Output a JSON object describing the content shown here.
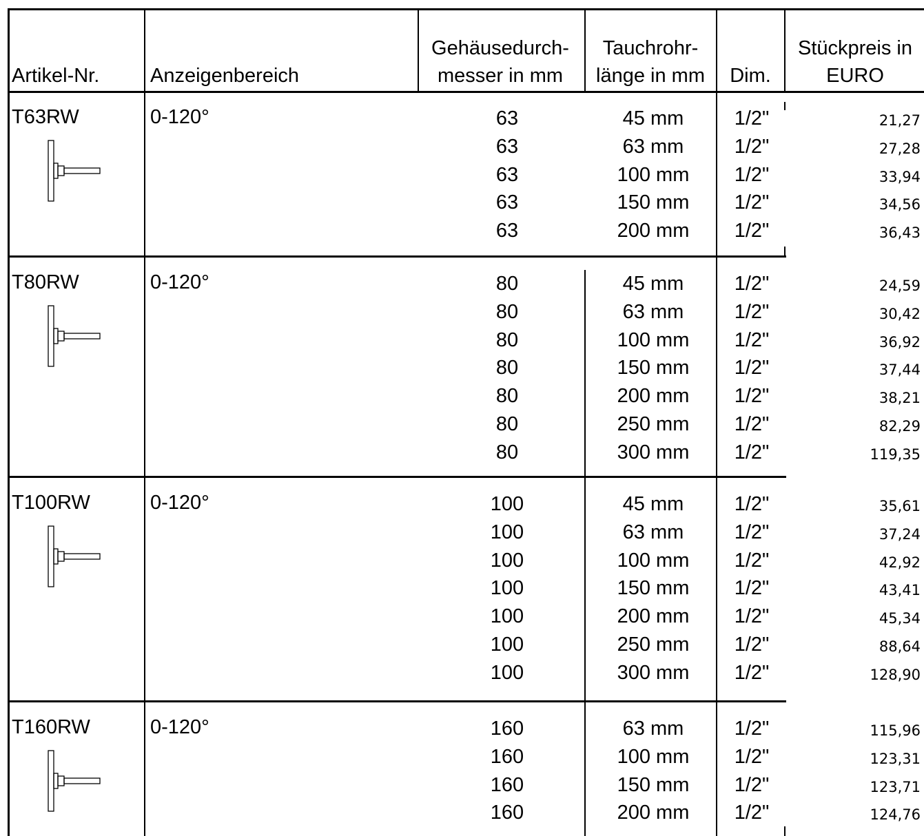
{
  "header": {
    "artikel": "Artikel-Nr.",
    "bereich": "Anzeigenbereich",
    "gehaeuse_1": "Gehäusedurch-",
    "gehaeuse_2": "messer in mm",
    "tauch_1": "Tauchrohr-",
    "tauch_2": "länge in mm",
    "dim": "Dim.",
    "preis_1": "Stückpreis in",
    "preis_2": "EURO"
  },
  "groups": [
    {
      "article": "T63RW",
      "range": "0-120°",
      "icon": "thermometer-icon",
      "rows": [
        {
          "diameter": "63",
          "length": "45 mm",
          "dim": "1/2\"",
          "price": "21,27"
        },
        {
          "diameter": "63",
          "length": "63 mm",
          "dim": "1/2\"",
          "price": "27,28"
        },
        {
          "diameter": "63",
          "length": "100 mm",
          "dim": "1/2\"",
          "price": "33,94"
        },
        {
          "diameter": "63",
          "length": "150 mm",
          "dim": "1/2\"",
          "price": "34,56"
        },
        {
          "diameter": "63",
          "length": "200 mm",
          "dim": "1/2\"",
          "price": "36,43"
        }
      ]
    },
    {
      "article": "T80RW",
      "range": "0-120°",
      "icon": "thermometer-icon",
      "rows": [
        {
          "diameter": "80",
          "length": "45 mm",
          "dim": "1/2\"",
          "price": "24,59"
        },
        {
          "diameter": "80",
          "length": "63 mm",
          "dim": "1/2\"",
          "price": "30,42"
        },
        {
          "diameter": "80",
          "length": "100 mm",
          "dim": "1/2\"",
          "price": "36,92"
        },
        {
          "diameter": "80",
          "length": "150 mm",
          "dim": "1/2\"",
          "price": "37,44"
        },
        {
          "diameter": "80",
          "length": "200 mm",
          "dim": "1/2\"",
          "price": "38,21"
        },
        {
          "diameter": "80",
          "length": "250 mm",
          "dim": "1/2\"",
          "price": "82,29"
        },
        {
          "diameter": "80",
          "length": "300 mm",
          "dim": "1/2\"",
          "price": "119,35"
        }
      ]
    },
    {
      "article": "T100RW",
      "range": "0-120°",
      "icon": "thermometer-icon",
      "rows": [
        {
          "diameter": "100",
          "length": "45 mm",
          "dim": "1/2\"",
          "price": "35,61"
        },
        {
          "diameter": "100",
          "length": "63 mm",
          "dim": "1/2\"",
          "price": "37,24"
        },
        {
          "diameter": "100",
          "length": "100 mm",
          "dim": "1/2\"",
          "price": "42,92"
        },
        {
          "diameter": "100",
          "length": "150 mm",
          "dim": "1/2\"",
          "price": "43,41"
        },
        {
          "diameter": "100",
          "length": "200 mm",
          "dim": "1/2\"",
          "price": "45,34"
        },
        {
          "diameter": "100",
          "length": "250 mm",
          "dim": "1/2\"",
          "price": "88,64"
        },
        {
          "diameter": "100",
          "length": "300 mm",
          "dim": "1/2\"",
          "price": "128,90"
        }
      ]
    },
    {
      "article": "T160RW",
      "range": "0-120°",
      "icon": "thermometer-icon",
      "rows": [
        {
          "diameter": "160",
          "length": "63 mm",
          "dim": "1/2\"",
          "price": "115,96"
        },
        {
          "diameter": "160",
          "length": "100 mm",
          "dim": "1/2\"",
          "price": "123,31"
        },
        {
          "diameter": "160",
          "length": "150 mm",
          "dim": "1/2\"",
          "price": "123,71"
        },
        {
          "diameter": "160",
          "length": "200 mm",
          "dim": "1/2\"",
          "price": "124,76"
        }
      ]
    }
  ]
}
